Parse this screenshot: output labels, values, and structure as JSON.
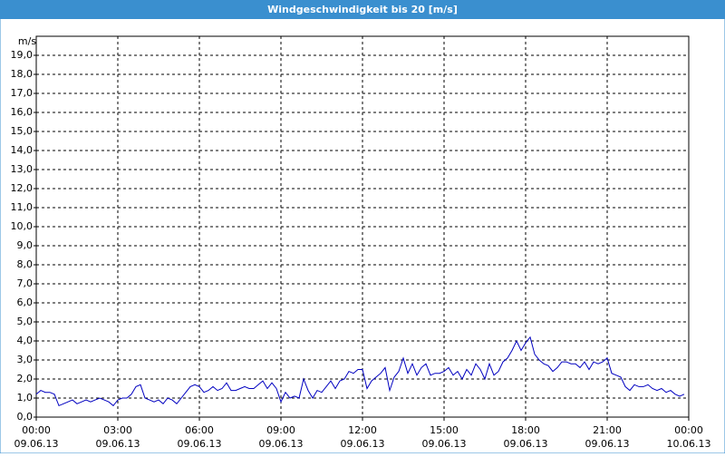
{
  "chart_data": {
    "type": "line",
    "title": "Windgeschwindigkeit bis 20 [m/s]",
    "y_unit": "m/s",
    "ylim": [
      0,
      20
    ],
    "yticks": [
      {
        "value": 0,
        "label": "0,0"
      },
      {
        "value": 1,
        "label": "1,0"
      },
      {
        "value": 2,
        "label": "2,0"
      },
      {
        "value": 3,
        "label": "3,0"
      },
      {
        "value": 4,
        "label": "4,0"
      },
      {
        "value": 5,
        "label": "5,0"
      },
      {
        "value": 6,
        "label": "6,0"
      },
      {
        "value": 7,
        "label": "7,0"
      },
      {
        "value": 8,
        "label": "8,0"
      },
      {
        "value": 9,
        "label": "9,0"
      },
      {
        "value": 10,
        "label": "10,0"
      },
      {
        "value": 11,
        "label": "11,0"
      },
      {
        "value": 12,
        "label": "12,0"
      },
      {
        "value": 13,
        "label": "13,0"
      },
      {
        "value": 14,
        "label": "14,0"
      },
      {
        "value": 15,
        "label": "15,0"
      },
      {
        "value": 16,
        "label": "16,0"
      },
      {
        "value": 17,
        "label": "17,0"
      },
      {
        "value": 18,
        "label": "18,0"
      },
      {
        "value": 19,
        "label": "19,0"
      }
    ],
    "xlim": [
      0,
      1440
    ],
    "xticks": [
      {
        "value": 0,
        "label": "00:00",
        "date": "09.06.13"
      },
      {
        "value": 180,
        "label": "03:00",
        "date": "09.06.13"
      },
      {
        "value": 360,
        "label": "06:00",
        "date": "09.06.13"
      },
      {
        "value": 540,
        "label": "09:00",
        "date": "09.06.13"
      },
      {
        "value": 720,
        "label": "12:00",
        "date": "09.06.13"
      },
      {
        "value": 900,
        "label": "15:00",
        "date": "09.06.13"
      },
      {
        "value": 1080,
        "label": "18:00",
        "date": "09.06.13"
      },
      {
        "value": 1260,
        "label": "21:00",
        "date": "09.06.13"
      },
      {
        "value": 1440,
        "label": "00:00",
        "date": "10.06.13"
      }
    ],
    "grid": true,
    "x": [
      0,
      10,
      20,
      30,
      40,
      50,
      60,
      70,
      80,
      90,
      100,
      110,
      120,
      130,
      140,
      150,
      160,
      170,
      180,
      190,
      200,
      210,
      220,
      230,
      240,
      250,
      260,
      270,
      280,
      290,
      300,
      310,
      320,
      330,
      340,
      350,
      360,
      370,
      380,
      390,
      400,
      410,
      420,
      430,
      440,
      450,
      460,
      470,
      480,
      490,
      500,
      510,
      520,
      530,
      540,
      550,
      560,
      570,
      580,
      590,
      600,
      610,
      620,
      630,
      640,
      650,
      660,
      670,
      680,
      690,
      700,
      710,
      720,
      730,
      740,
      750,
      760,
      770,
      780,
      790,
      800,
      810,
      820,
      830,
      840,
      850,
      860,
      870,
      880,
      890,
      900,
      910,
      920,
      930,
      940,
      950,
      960,
      970,
      980,
      990,
      1000,
      1010,
      1020,
      1030,
      1040,
      1050,
      1060,
      1070,
      1080,
      1090,
      1100,
      1110,
      1120,
      1130,
      1140,
      1150,
      1160,
      1170,
      1180,
      1190,
      1200,
      1210,
      1220,
      1230,
      1240,
      1250,
      1260,
      1270,
      1280,
      1290,
      1300,
      1310,
      1320,
      1330,
      1340,
      1350,
      1360,
      1370,
      1380,
      1390,
      1400,
      1410,
      1420,
      1430
    ],
    "series": [
      {
        "color": "#0000c0",
        "values": [
          1.2,
          1.4,
          1.3,
          1.3,
          1.2,
          0.6,
          0.7,
          0.8,
          0.9,
          0.7,
          0.8,
          0.9,
          0.8,
          0.9,
          1.0,
          0.9,
          0.8,
          0.6,
          0.9,
          1.0,
          1.0,
          1.2,
          1.6,
          1.7,
          1.0,
          0.9,
          0.8,
          0.9,
          0.7,
          1.0,
          0.9,
          0.7,
          1.0,
          1.3,
          1.6,
          1.7,
          1.6,
          1.3,
          1.4,
          1.6,
          1.4,
          1.5,
          1.8,
          1.4,
          1.4,
          1.5,
          1.6,
          1.5,
          1.5,
          1.7,
          1.9,
          1.5,
          1.8,
          1.5,
          0.8,
          1.3,
          1.0,
          1.1,
          1.0,
          2.0,
          1.4,
          1.0,
          1.4,
          1.3,
          1.6,
          1.9,
          1.5,
          1.9,
          2.0,
          2.4,
          2.3,
          2.5,
          2.5,
          1.5,
          1.9,
          2.1,
          2.3,
          2.6,
          1.4,
          2.1,
          2.4,
          3.1,
          2.3,
          2.8,
          2.2,
          2.6,
          2.8,
          2.2,
          2.3,
          2.3,
          2.4,
          2.6,
          2.2,
          2.4,
          2.0,
          2.5,
          2.2,
          2.8,
          2.5,
          2.0,
          2.8,
          2.2,
          2.4,
          2.9,
          3.1,
          3.5,
          4.0,
          3.5,
          3.9,
          4.2,
          3.3,
          3.0,
          2.8,
          2.7,
          2.4,
          2.6,
          2.9,
          2.9,
          2.8,
          2.8,
          2.6,
          2.9,
          2.5,
          2.9,
          2.8,
          2.9,
          3.1,
          2.3,
          2.2,
          2.1,
          1.6,
          1.4,
          1.7,
          1.6,
          1.6,
          1.7,
          1.5,
          1.4,
          1.5,
          1.3,
          1.4,
          1.2,
          1.1,
          1.2
        ]
      }
    ]
  }
}
